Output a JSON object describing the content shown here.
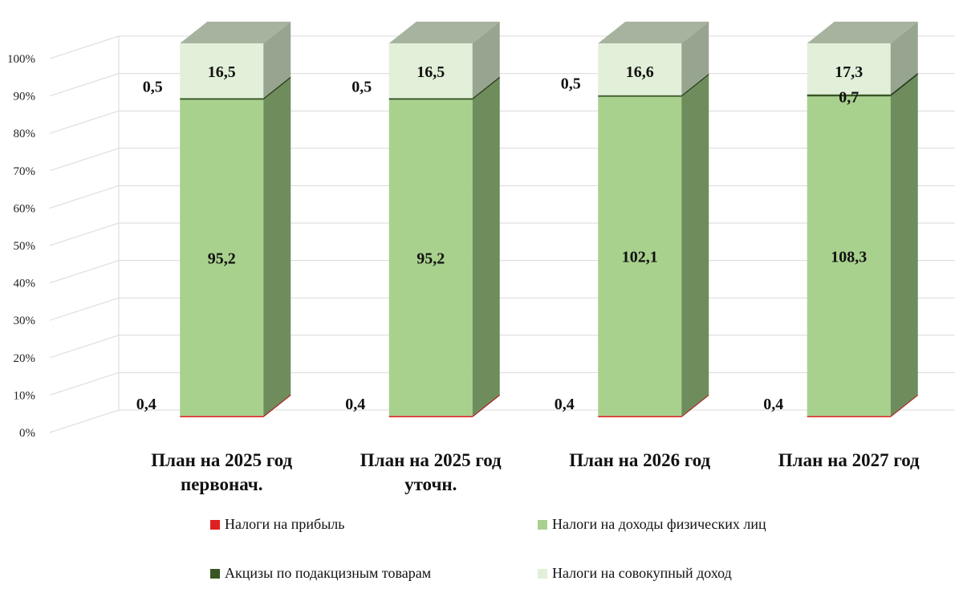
{
  "chart_data": {
    "type": "bar",
    "stacked": "percent",
    "three_d": true,
    "categories": [
      [
        "План на 2025 год",
        "первонач."
      ],
      [
        "План на 2025 год",
        "уточн."
      ],
      [
        "План на 2026 год"
      ],
      [
        "План на 2027 год"
      ]
    ],
    "y_ticks": [
      "0%",
      "10%",
      "20%",
      "30%",
      "40%",
      "50%",
      "60%",
      "70%",
      "80%",
      "90%",
      "100%"
    ],
    "ylim": [
      0,
      100
    ],
    "series": [
      {
        "name": "Налоги на прибыль",
        "color": "#e02020",
        "side_color": "#a01818",
        "values": [
          0.4,
          0.4,
          0.4,
          0.4
        ],
        "labels": [
          "0,4",
          "0,4",
          "0,4",
          "0,4"
        ]
      },
      {
        "name": "Налоги на доходы физических лиц",
        "color": "#a9d18e",
        "side_color": "#6e8c5c",
        "values": [
          95.2,
          95.2,
          102.1,
          108.3
        ],
        "labels": [
          "95,2",
          "95,2",
          "102,1",
          "108,3"
        ]
      },
      {
        "name": "Акцизы по подакцизным товарам",
        "color": "#375623",
        "side_color": "#2a401b",
        "values": [
          0.5,
          0.5,
          0.5,
          0.7
        ],
        "labels": [
          "0,5",
          "0,5",
          "0,5",
          "0,7"
        ]
      },
      {
        "name": "Налоги на совокупный доход",
        "color": "#e2efd9",
        "side_color": "#97a590",
        "values": [
          16.5,
          16.5,
          16.6,
          17.3
        ],
        "labels": [
          "16,5",
          "16,5",
          "16,6",
          "17,3"
        ]
      }
    ],
    "grid": true,
    "legend_position": "bottom"
  }
}
